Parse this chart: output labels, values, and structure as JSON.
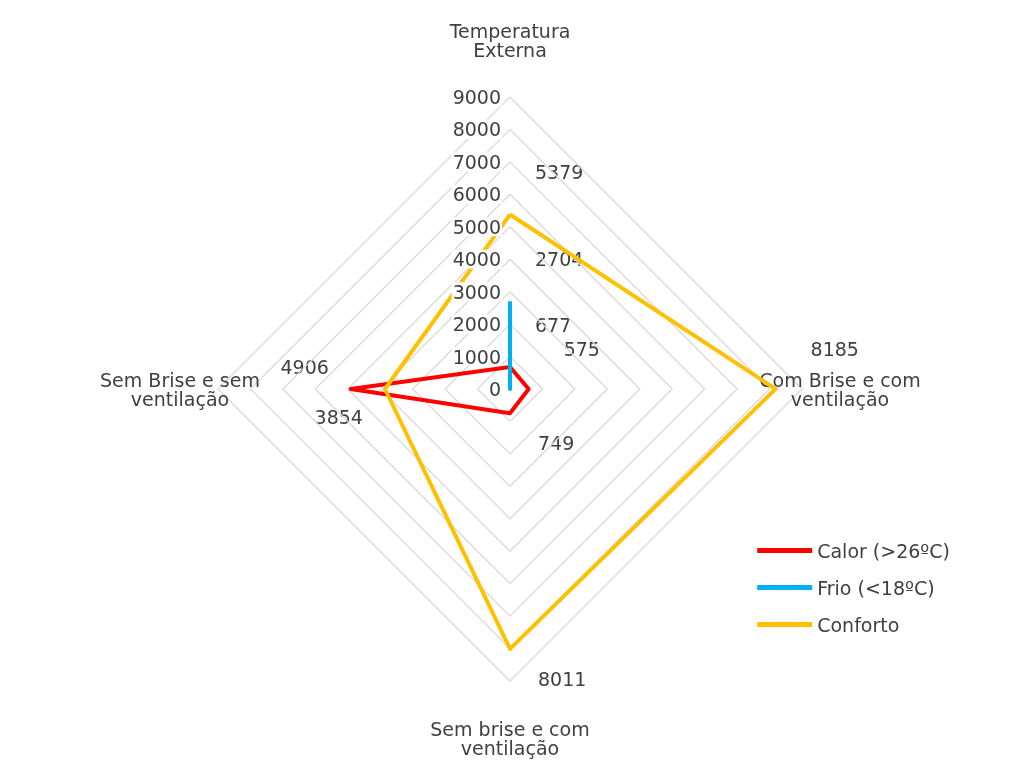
{
  "chart_data": {
    "type": "radar",
    "categories": [
      "Temperatura Externa",
      "Com Brise e com ventilação",
      "Sem brise e com ventilação",
      "Sem Brise e sem ventilação"
    ],
    "ylim": [
      0,
      9000
    ],
    "yticks": [
      0,
      1000,
      2000,
      3000,
      4000,
      5000,
      6000,
      7000,
      8000,
      9000
    ],
    "series": [
      {
        "name": "Calor (>26ºC)",
        "color": "#ff0000",
        "values": [
          677,
          575,
          749,
          4906
        ],
        "value_labels": [
          "677",
          "575",
          "749",
          "4906"
        ]
      },
      {
        "name": "Frio (<18ºC)",
        "color": "#00b0f0",
        "values": [
          2704,
          0,
          0,
          0
        ],
        "value_labels": [
          "2704",
          null,
          null,
          null
        ]
      },
      {
        "name": "Conforto",
        "color": "#ffc000",
        "values": [
          5379,
          8185,
          8011,
          3854
        ],
        "value_labels": [
          "5379",
          "8185",
          "8011",
          "3854"
        ]
      }
    ],
    "grid": true,
    "legend": "bottom right",
    "marker": "none"
  }
}
